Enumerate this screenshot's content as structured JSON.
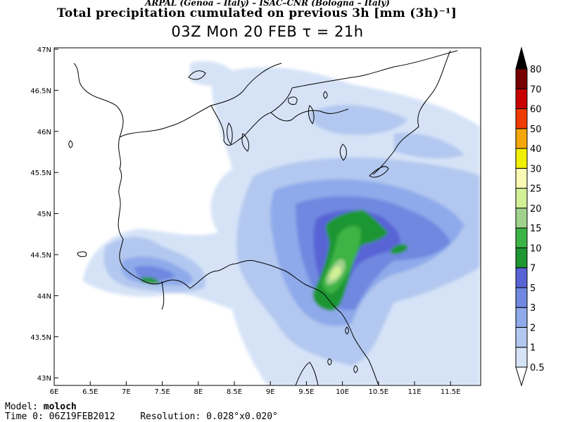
{
  "header": {
    "credit": "ARPAL (Genoa – Italy)  –  ISAC–CNR (Bologna – Italy)",
    "title": "Total precipitation cumulated on previous 3h [mm (3h)⁻¹]",
    "valid": "03Z Mon 20 FEB   τ = 21h"
  },
  "map": {
    "lat_labels": [
      "47N",
      "46.5N",
      "46N",
      "45.5N",
      "45N",
      "44.5N",
      "44N",
      "43.5N",
      "43N"
    ],
    "lon_labels": [
      "6E",
      "6.5E",
      "7E",
      "7.5E",
      "8E",
      "8.5E",
      "9E",
      "9.5E",
      "10E",
      "10.5E",
      "11E",
      "11.5E"
    ]
  },
  "colorbar": {
    "levels": [
      "0.5",
      "1",
      "2",
      "3",
      "5",
      "7",
      "10",
      "15",
      "20",
      "25",
      "30",
      "40",
      "50",
      "60",
      "70",
      "80"
    ],
    "colors": [
      "#ffffff",
      "#d6e3f7",
      "#b3c8f0",
      "#8eaaea",
      "#6f88e0",
      "#5863d6",
      "#1e9632",
      "#3cb445",
      "#a0d28c",
      "#d2f096",
      "#fafab4",
      "#f0f000",
      "#f4a60a",
      "#f03c00",
      "#c80000",
      "#780000",
      "#000000"
    ]
  },
  "footer": {
    "model_label": "Model:",
    "model_value": "moloch",
    "time_label": "Time 0:",
    "time_value": "06Z19FEB2012",
    "res_label": "Resolution:",
    "res_value": "0.028°x0.020°"
  }
}
